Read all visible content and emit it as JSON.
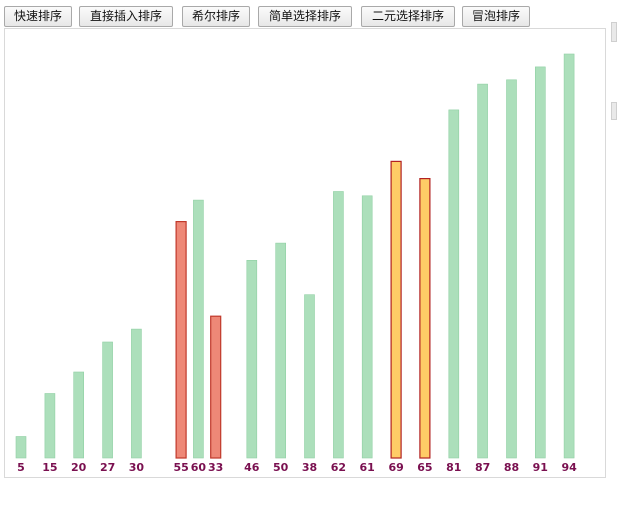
{
  "toolbar": {
    "buttons": [
      {
        "id": "quick",
        "label": "快速排序"
      },
      {
        "id": "insert",
        "label": "直接插入排序"
      },
      {
        "id": "shell",
        "label": "希尔排序"
      },
      {
        "id": "select",
        "label": "简单选择排序"
      },
      {
        "id": "binary-select",
        "label": "二元选择排序"
      },
      {
        "id": "bubble",
        "label": "冒泡排序"
      }
    ]
  },
  "colors": {
    "default_fill": "#acdfbb",
    "default_stroke": "#8fcfa3",
    "active_red_fill": "#ee8877",
    "active_red_stroke": "#c0392b",
    "active_orange_fill": "#ffcc66",
    "active_orange_stroke": "#b22222",
    "label_color": "#7a1050"
  },
  "chart_data": {
    "type": "bar",
    "values": [
      5,
      15,
      20,
      27,
      30,
      55,
      60,
      33,
      46,
      50,
      38,
      62,
      61,
      69,
      65,
      81,
      87,
      88,
      91,
      94
    ],
    "labels": [
      "5",
      "15",
      "20",
      "27",
      "30",
      "55",
      "60",
      "33",
      "46",
      "50",
      "38",
      "62",
      "61",
      "69",
      "65",
      "81",
      "87",
      "88",
      "91",
      "94"
    ],
    "states": [
      "default",
      "default",
      "default",
      "default",
      "default",
      "red",
      "default",
      "red",
      "default",
      "default",
      "default",
      "default",
      "default",
      "orange",
      "orange",
      "default",
      "default",
      "default",
      "default",
      "default"
    ],
    "ylim": [
      0,
      94
    ]
  }
}
